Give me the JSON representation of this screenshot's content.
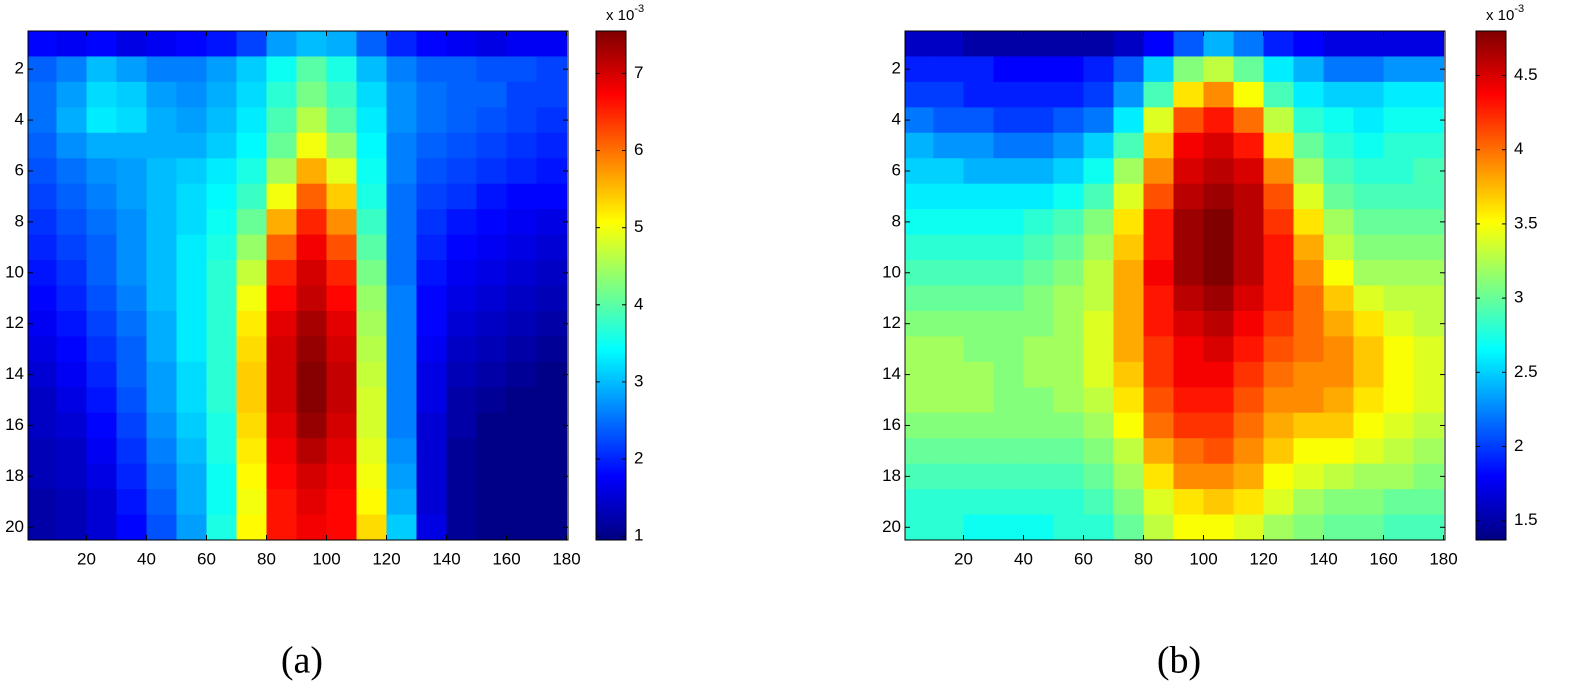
{
  "chart_data": [
    {
      "type": "heatmap",
      "colormap": "jet",
      "y_reversed": true,
      "caption": "(a)",
      "colorbar_label": "x 10",
      "colorbar_exponent": "-3",
      "x": [
        5,
        15,
        25,
        35,
        45,
        55,
        65,
        75,
        85,
        95,
        105,
        115,
        125,
        135,
        145,
        155,
        165,
        175
      ],
      "y": [
        1,
        2,
        3,
        4,
        5,
        6,
        7,
        8,
        9,
        10,
        11,
        12,
        13,
        14,
        15,
        16,
        17,
        18,
        19,
        20
      ],
      "xlim": [
        0.5,
        180.5
      ],
      "ylim": [
        0.5,
        20.5
      ],
      "xticks": [
        20,
        40,
        60,
        80,
        100,
        120,
        140,
        160,
        180
      ],
      "yticks": [
        2,
        4,
        6,
        8,
        10,
        12,
        14,
        16,
        18,
        20
      ],
      "clim": [
        0.95,
        7.55
      ],
      "cticks": [
        1,
        2,
        3,
        4,
        5,
        6,
        7
      ],
      "values": [
        [
          1.8,
          1.7,
          1.8,
          1.6,
          1.7,
          1.8,
          1.9,
          2.2,
          2.8,
          3.0,
          2.9,
          2.4,
          2.0,
          1.8,
          1.7,
          1.6,
          1.7,
          1.7
        ],
        [
          2.4,
          2.6,
          3.0,
          2.8,
          2.6,
          2.6,
          2.8,
          3.1,
          3.5,
          4.0,
          3.6,
          3.0,
          2.6,
          2.4,
          2.4,
          2.3,
          2.3,
          2.2
        ],
        [
          2.5,
          2.8,
          3.2,
          3.1,
          2.8,
          2.7,
          2.9,
          3.2,
          3.7,
          4.2,
          3.8,
          3.2,
          2.7,
          2.5,
          2.4,
          2.4,
          2.2,
          2.2
        ],
        [
          2.5,
          2.9,
          3.3,
          3.2,
          2.9,
          2.8,
          3.0,
          3.3,
          3.9,
          4.6,
          4.0,
          3.3,
          2.7,
          2.5,
          2.4,
          2.3,
          2.2,
          2.1
        ],
        [
          2.4,
          2.7,
          2.9,
          2.9,
          2.9,
          2.9,
          3.1,
          3.4,
          4.1,
          5.0,
          4.4,
          3.4,
          2.6,
          2.4,
          2.3,
          2.2,
          2.1,
          2.0
        ],
        [
          2.3,
          2.5,
          2.7,
          2.8,
          3.0,
          3.1,
          3.3,
          3.6,
          4.5,
          5.6,
          4.9,
          3.5,
          2.6,
          2.3,
          2.2,
          2.1,
          2.0,
          1.9
        ],
        [
          2.2,
          2.4,
          2.6,
          2.8,
          3.0,
          3.2,
          3.4,
          3.8,
          5.0,
          6.1,
          5.4,
          3.6,
          2.5,
          2.2,
          2.1,
          1.9,
          1.8,
          1.8
        ],
        [
          2.1,
          2.3,
          2.5,
          2.7,
          3.0,
          3.2,
          3.5,
          4.1,
          5.6,
          6.5,
          5.8,
          3.8,
          2.5,
          2.1,
          1.9,
          1.8,
          1.7,
          1.6
        ],
        [
          2.0,
          2.2,
          2.4,
          2.7,
          3.0,
          3.3,
          3.6,
          4.4,
          6.1,
          6.8,
          6.2,
          4.0,
          2.5,
          2.0,
          1.8,
          1.7,
          1.6,
          1.5
        ],
        [
          1.9,
          2.1,
          2.4,
          2.7,
          3.0,
          3.3,
          3.7,
          4.7,
          6.5,
          7.0,
          6.5,
          4.2,
          2.5,
          1.9,
          1.7,
          1.6,
          1.5,
          1.4
        ],
        [
          1.8,
          2.0,
          2.3,
          2.6,
          3.0,
          3.3,
          3.7,
          5.0,
          6.7,
          7.1,
          6.7,
          4.4,
          2.6,
          1.8,
          1.6,
          1.5,
          1.4,
          1.3
        ],
        [
          1.7,
          1.9,
          2.2,
          2.5,
          2.9,
          3.3,
          3.7,
          5.2,
          6.9,
          7.3,
          6.9,
          4.5,
          2.6,
          1.8,
          1.5,
          1.4,
          1.3,
          1.2
        ],
        [
          1.6,
          1.8,
          2.1,
          2.4,
          2.9,
          3.3,
          3.7,
          5.3,
          7.0,
          7.4,
          7.0,
          4.6,
          2.6,
          1.7,
          1.4,
          1.3,
          1.2,
          1.1
        ],
        [
          1.5,
          1.7,
          2.0,
          2.4,
          2.8,
          3.2,
          3.7,
          5.4,
          7.0,
          7.5,
          7.1,
          4.7,
          2.6,
          1.6,
          1.3,
          1.2,
          1.1,
          1.0
        ],
        [
          1.4,
          1.6,
          1.9,
          2.3,
          2.8,
          3.2,
          3.7,
          5.4,
          7.0,
          7.5,
          7.1,
          4.8,
          2.6,
          1.6,
          1.2,
          1.1,
          1.0,
          1.0
        ],
        [
          1.4,
          1.5,
          1.8,
          2.2,
          2.7,
          3.1,
          3.6,
          5.3,
          6.9,
          7.4,
          7.0,
          4.8,
          2.6,
          1.5,
          1.2,
          1.0,
          1.0,
          1.0
        ],
        [
          1.3,
          1.4,
          1.7,
          2.1,
          2.6,
          3.0,
          3.6,
          5.2,
          6.8,
          7.2,
          6.9,
          4.9,
          2.7,
          1.5,
          1.1,
          1.0,
          1.0,
          1.0
        ],
        [
          1.3,
          1.4,
          1.6,
          2.0,
          2.5,
          2.9,
          3.5,
          5.1,
          6.7,
          7.0,
          6.8,
          5.0,
          2.8,
          1.5,
          1.1,
          1.0,
          1.0,
          1.0
        ],
        [
          1.2,
          1.3,
          1.5,
          1.9,
          2.4,
          2.9,
          3.5,
          5.0,
          6.6,
          6.9,
          6.7,
          5.1,
          2.9,
          1.5,
          1.1,
          1.0,
          1.0,
          1.0
        ],
        [
          1.2,
          1.3,
          1.5,
          1.8,
          2.3,
          2.8,
          3.6,
          5.1,
          6.6,
          6.8,
          6.7,
          5.3,
          3.1,
          1.6,
          1.1,
          1.0,
          1.0,
          1.0
        ]
      ]
    },
    {
      "type": "heatmap",
      "colormap": "jet",
      "y_reversed": true,
      "caption": "(b)",
      "colorbar_label": "x 10",
      "colorbar_exponent": "-3",
      "x": [
        5,
        15,
        25,
        35,
        45,
        55,
        65,
        75,
        85,
        95,
        105,
        115,
        125,
        135,
        145,
        155,
        165,
        175
      ],
      "y": [
        1,
        2,
        3,
        4,
        5,
        6,
        7,
        8,
        9,
        10,
        11,
        12,
        13,
        14,
        15,
        16,
        17,
        18,
        19,
        20
      ],
      "xlim": [
        0.5,
        180.5
      ],
      "ylim": [
        0.5,
        20.5
      ],
      "xticks": [
        20,
        40,
        60,
        80,
        100,
        120,
        140,
        160,
        180
      ],
      "yticks": [
        2,
        4,
        6,
        8,
        10,
        12,
        14,
        16,
        18,
        20
      ],
      "clim": [
        1.37,
        4.8
      ],
      "cticks": [
        1.5,
        2,
        2.5,
        3,
        3.5,
        4,
        4.5
      ],
      "values": [
        [
          1.6,
          1.6,
          1.5,
          1.5,
          1.5,
          1.5,
          1.5,
          1.6,
          1.8,
          2.1,
          2.4,
          2.2,
          1.9,
          1.8,
          1.7,
          1.7,
          1.7,
          1.7
        ],
        [
          1.9,
          1.9,
          1.9,
          1.8,
          1.8,
          1.8,
          1.9,
          2.1,
          2.5,
          3.1,
          3.3,
          3.0,
          2.6,
          2.4,
          2.2,
          2.2,
          2.3,
          2.3
        ],
        [
          2.0,
          2.0,
          1.9,
          1.9,
          1.9,
          1.9,
          2.0,
          2.3,
          2.9,
          3.6,
          3.9,
          3.5,
          2.9,
          2.6,
          2.5,
          2.5,
          2.6,
          2.6
        ],
        [
          2.2,
          2.1,
          2.1,
          2.0,
          2.0,
          2.1,
          2.2,
          2.6,
          3.4,
          4.1,
          4.3,
          4.0,
          3.3,
          2.8,
          2.7,
          2.6,
          2.7,
          2.7
        ],
        [
          2.4,
          2.3,
          2.3,
          2.2,
          2.2,
          2.3,
          2.5,
          2.9,
          3.7,
          4.4,
          4.5,
          4.3,
          3.6,
          3.0,
          2.8,
          2.7,
          2.8,
          2.8
        ],
        [
          2.5,
          2.5,
          2.4,
          2.4,
          2.4,
          2.5,
          2.7,
          3.2,
          3.9,
          4.5,
          4.6,
          4.5,
          3.9,
          3.2,
          2.9,
          2.8,
          2.8,
          2.9
        ],
        [
          2.6,
          2.6,
          2.6,
          2.6,
          2.6,
          2.7,
          2.9,
          3.4,
          4.1,
          4.6,
          4.7,
          4.6,
          4.1,
          3.4,
          3.0,
          2.9,
          2.9,
          2.9
        ],
        [
          2.7,
          2.7,
          2.7,
          2.7,
          2.8,
          2.9,
          3.1,
          3.6,
          4.3,
          4.7,
          4.8,
          4.6,
          4.2,
          3.6,
          3.2,
          3.0,
          3.0,
          3.0
        ],
        [
          2.8,
          2.8,
          2.8,
          2.8,
          2.9,
          3.0,
          3.2,
          3.7,
          4.3,
          4.7,
          4.8,
          4.6,
          4.3,
          3.8,
          3.3,
          3.1,
          3.1,
          3.1
        ],
        [
          2.9,
          2.9,
          2.9,
          2.9,
          3.0,
          3.1,
          3.3,
          3.8,
          4.4,
          4.7,
          4.8,
          4.6,
          4.3,
          3.9,
          3.5,
          3.2,
          3.2,
          3.2
        ],
        [
          3.0,
          3.0,
          3.0,
          3.0,
          3.1,
          3.2,
          3.3,
          3.8,
          4.3,
          4.6,
          4.7,
          4.5,
          4.3,
          4.0,
          3.7,
          3.4,
          3.3,
          3.3
        ],
        [
          3.1,
          3.1,
          3.1,
          3.1,
          3.1,
          3.2,
          3.4,
          3.8,
          4.3,
          4.5,
          4.6,
          4.4,
          4.2,
          4.0,
          3.8,
          3.6,
          3.4,
          3.3
        ],
        [
          3.2,
          3.2,
          3.1,
          3.1,
          3.2,
          3.2,
          3.4,
          3.8,
          4.2,
          4.4,
          4.5,
          4.3,
          4.1,
          4.0,
          3.9,
          3.7,
          3.5,
          3.4
        ],
        [
          3.2,
          3.2,
          3.2,
          3.1,
          3.2,
          3.2,
          3.4,
          3.7,
          4.2,
          4.4,
          4.4,
          4.2,
          4.0,
          3.9,
          3.9,
          3.7,
          3.5,
          3.4
        ],
        [
          3.2,
          3.2,
          3.2,
          3.1,
          3.1,
          3.2,
          3.3,
          3.6,
          4.1,
          4.3,
          4.3,
          4.1,
          3.9,
          3.9,
          3.8,
          3.6,
          3.5,
          3.4
        ],
        [
          3.1,
          3.1,
          3.1,
          3.1,
          3.1,
          3.1,
          3.2,
          3.5,
          4.0,
          4.2,
          4.2,
          4.0,
          3.8,
          3.7,
          3.7,
          3.5,
          3.4,
          3.3
        ],
        [
          3.0,
          3.0,
          3.0,
          3.0,
          3.0,
          3.0,
          3.1,
          3.3,
          3.8,
          4.0,
          4.1,
          3.9,
          3.7,
          3.5,
          3.5,
          3.4,
          3.3,
          3.2
        ],
        [
          2.9,
          2.9,
          2.9,
          2.9,
          2.9,
          2.9,
          3.0,
          3.2,
          3.6,
          3.9,
          3.9,
          3.8,
          3.5,
          3.4,
          3.3,
          3.2,
          3.2,
          3.1
        ],
        [
          2.8,
          2.8,
          2.8,
          2.8,
          2.8,
          2.8,
          2.9,
          3.1,
          3.4,
          3.6,
          3.7,
          3.6,
          3.4,
          3.2,
          3.1,
          3.1,
          3.0,
          3.0
        ],
        [
          2.8,
          2.8,
          2.7,
          2.7,
          2.7,
          2.8,
          2.8,
          3.0,
          3.3,
          3.5,
          3.5,
          3.4,
          3.2,
          3.1,
          3.0,
          3.0,
          2.9,
          2.9
        ]
      ]
    }
  ]
}
